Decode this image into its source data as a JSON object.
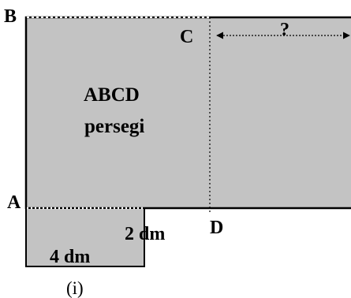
{
  "colors": {
    "fill": "#c3c3c3",
    "stroke": "#000000",
    "background": "#ffffff"
  },
  "points": {
    "a": "A",
    "b": "B",
    "c": "C",
    "d": "D"
  },
  "big_square": {
    "name": "ABCD",
    "kind": "persegi"
  },
  "small_rect": {
    "width_label": "4 dm",
    "height_label": "2 dm"
  },
  "unknown_label": "?",
  "caption": "(i)"
}
